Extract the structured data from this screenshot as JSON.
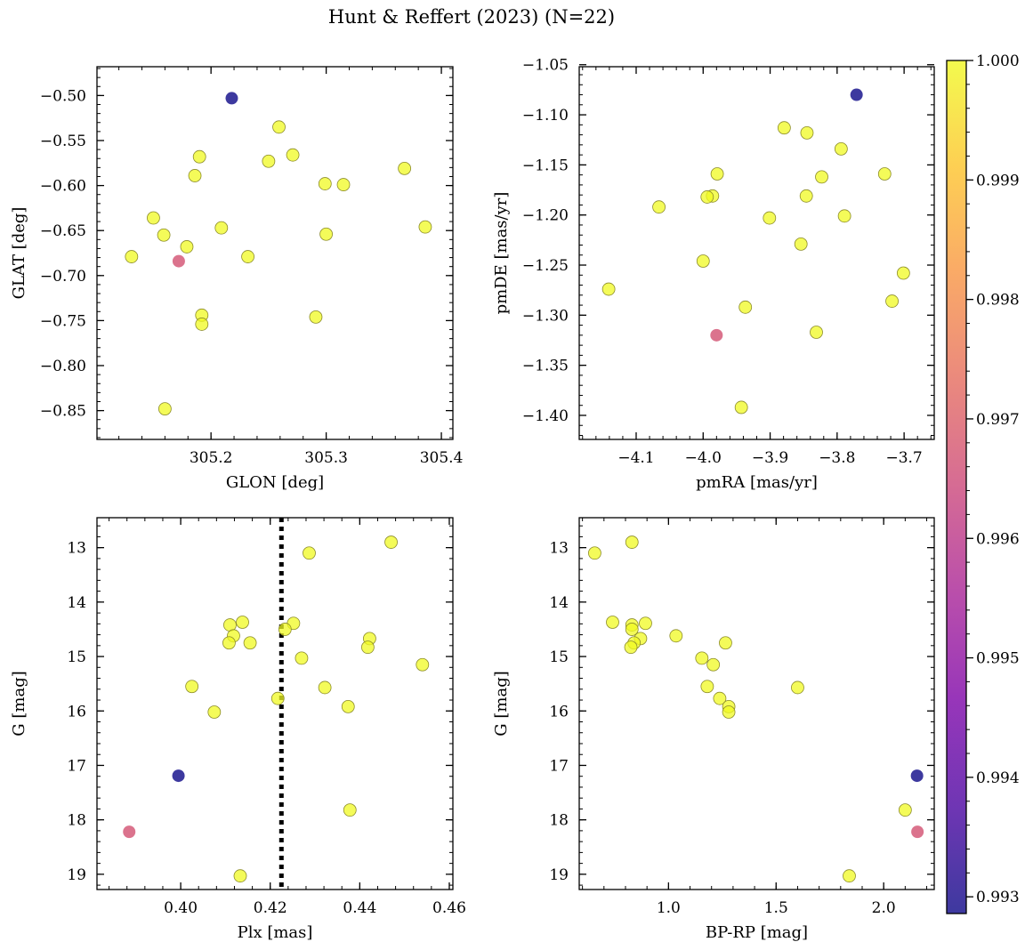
{
  "title": "Hunt & Reffert (2023) (N=22)",
  "colorbar": {
    "vmin": 0.99286,
    "vmax": 1.0,
    "ticks": [
      "0.993",
      "0.994",
      "0.995",
      "0.996",
      "0.997",
      "0.998",
      "0.999",
      "1.000"
    ],
    "tick_values": [
      0.993,
      0.994,
      0.995,
      0.996,
      0.997,
      0.998,
      0.999,
      1.0
    ],
    "colormap": "plasma"
  },
  "chart_data": [
    {
      "type": "scatter",
      "xlabel": "GLON [deg]",
      "ylabel": "GLAT [deg]",
      "xlim": [
        305.101,
        305.41
      ],
      "ylim": [
        -0.882,
        -0.468
      ],
      "yinvert": false,
      "xticks": [
        305.2,
        305.3,
        305.4
      ],
      "xticklabels": [
        "305.2",
        "305.3",
        "305.4"
      ],
      "xminor": 0.02,
      "yticks": [
        -0.85,
        -0.8,
        -0.75,
        -0.7,
        -0.65,
        -0.6,
        -0.55,
        -0.5
      ],
      "yticklabels": [
        "−0.85",
        "−0.80",
        "−0.75",
        "−0.70",
        "−0.65",
        "−0.60",
        "−0.55",
        "−0.50"
      ],
      "yminor": 0.01,
      "points": [
        {
          "x": 305.218,
          "y": -0.503,
          "c": 0.99286
        },
        {
          "x": 305.259,
          "y": -0.535,
          "c": 1.0
        },
        {
          "x": 305.271,
          "y": -0.566,
          "c": 1.0
        },
        {
          "x": 305.25,
          "y": -0.573,
          "c": 1.0
        },
        {
          "x": 305.19,
          "y": -0.568,
          "c": 1.0
        },
        {
          "x": 305.186,
          "y": -0.589,
          "c": 1.0
        },
        {
          "x": 305.368,
          "y": -0.581,
          "c": 1.0
        },
        {
          "x": 305.299,
          "y": -0.598,
          "c": 1.0
        },
        {
          "x": 305.315,
          "y": -0.599,
          "c": 1.0
        },
        {
          "x": 305.15,
          "y": -0.636,
          "c": 1.0
        },
        {
          "x": 305.159,
          "y": -0.655,
          "c": 1.0
        },
        {
          "x": 305.209,
          "y": -0.647,
          "c": 1.0
        },
        {
          "x": 305.3,
          "y": -0.654,
          "c": 1.0
        },
        {
          "x": 305.386,
          "y": -0.646,
          "c": 1.0
        },
        {
          "x": 305.179,
          "y": -0.668,
          "c": 1.0
        },
        {
          "x": 305.131,
          "y": -0.679,
          "c": 1.0
        },
        {
          "x": 305.232,
          "y": -0.679,
          "c": 1.0
        },
        {
          "x": 305.172,
          "y": -0.684,
          "c": 0.99667
        },
        {
          "x": 305.192,
          "y": -0.744,
          "c": 1.0
        },
        {
          "x": 305.192,
          "y": -0.754,
          "c": 1.0
        },
        {
          "x": 305.291,
          "y": -0.746,
          "c": 1.0
        },
        {
          "x": 305.16,
          "y": -0.848,
          "c": 1.0
        }
      ]
    },
    {
      "type": "scatter",
      "xlabel": "pmRA [mas/yr]",
      "ylabel": "pmDE [mas/yr]",
      "xlim": [
        -4.185,
        -3.655
      ],
      "ylim": [
        -1.424,
        -1.052
      ],
      "yinvert": false,
      "xticks": [
        -4.1,
        -4.0,
        -3.9,
        -3.8,
        -3.7
      ],
      "xticklabels": [
        "−4.1",
        "−4.0",
        "−3.9",
        "−3.8",
        "−3.7"
      ],
      "xminor": 0.02,
      "yticks": [
        -1.4,
        -1.35,
        -1.3,
        -1.25,
        -1.2,
        -1.15,
        -1.1,
        -1.05
      ],
      "yticklabels": [
        "−1.40",
        "−1.35",
        "−1.30",
        "−1.25",
        "−1.20",
        "−1.15",
        "−1.10",
        "−1.05"
      ],
      "yminor": 0.01,
      "points": [
        {
          "x": -3.771,
          "y": -1.08,
          "c": 0.99286
        },
        {
          "x": -3.879,
          "y": -1.113,
          "c": 1.0
        },
        {
          "x": -3.845,
          "y": -1.118,
          "c": 1.0
        },
        {
          "x": -3.794,
          "y": -1.134,
          "c": 1.0
        },
        {
          "x": -3.729,
          "y": -1.159,
          "c": 1.0
        },
        {
          "x": -3.979,
          "y": -1.159,
          "c": 1.0
        },
        {
          "x": -3.823,
          "y": -1.162,
          "c": 1.0
        },
        {
          "x": -3.846,
          "y": -1.181,
          "c": 1.0
        },
        {
          "x": -3.986,
          "y": -1.181,
          "c": 1.0
        },
        {
          "x": -3.994,
          "y": -1.182,
          "c": 1.0
        },
        {
          "x": -4.066,
          "y": -1.192,
          "c": 1.0
        },
        {
          "x": -3.789,
          "y": -1.201,
          "c": 1.0
        },
        {
          "x": -3.901,
          "y": -1.203,
          "c": 1.0
        },
        {
          "x": -3.854,
          "y": -1.229,
          "c": 1.0
        },
        {
          "x": -4.0,
          "y": -1.246,
          "c": 1.0
        },
        {
          "x": -3.701,
          "y": -1.258,
          "c": 1.0
        },
        {
          "x": -4.141,
          "y": -1.274,
          "c": 1.0
        },
        {
          "x": -3.718,
          "y": -1.286,
          "c": 1.0
        },
        {
          "x": -3.937,
          "y": -1.292,
          "c": 1.0
        },
        {
          "x": -3.831,
          "y": -1.317,
          "c": 1.0
        },
        {
          "x": -3.98,
          "y": -1.32,
          "c": 0.99667
        },
        {
          "x": -3.943,
          "y": -1.392,
          "c": 1.0
        }
      ]
    },
    {
      "type": "scatter",
      "xlabel": "Plx [mas]",
      "ylabel": "G [mag]",
      "xlim": [
        0.3813,
        0.4608
      ],
      "ylim": [
        12.45,
        19.28
      ],
      "yinvert": true,
      "vline": 0.4225,
      "xticks": [
        0.4,
        0.42,
        0.44,
        0.46
      ],
      "xticklabels": [
        "0.40",
        "0.42",
        "0.44",
        "0.46"
      ],
      "xminor": 0.004,
      "yticks": [
        13,
        14,
        15,
        16,
        17,
        18,
        19
      ],
      "yticklabels": [
        "13",
        "14",
        "15",
        "16",
        "17",
        "18",
        "19"
      ],
      "yminor": 0.2,
      "points": [
        {
          "x": 0.447,
          "y": 12.9,
          "c": 1.0
        },
        {
          "x": 0.4287,
          "y": 13.1,
          "c": 1.0
        },
        {
          "x": 0.4138,
          "y": 14.37,
          "c": 1.0
        },
        {
          "x": 0.4252,
          "y": 14.39,
          "c": 1.0
        },
        {
          "x": 0.411,
          "y": 14.42,
          "c": 1.0
        },
        {
          "x": 0.4233,
          "y": 14.5,
          "c": 1.0
        },
        {
          "x": 0.4118,
          "y": 14.62,
          "c": 1.0
        },
        {
          "x": 0.4422,
          "y": 14.67,
          "c": 1.0
        },
        {
          "x": 0.4108,
          "y": 14.75,
          "c": 1.0
        },
        {
          "x": 0.4155,
          "y": 14.75,
          "c": 1.0
        },
        {
          "x": 0.4418,
          "y": 14.83,
          "c": 1.0
        },
        {
          "x": 0.427,
          "y": 15.03,
          "c": 1.0
        },
        {
          "x": 0.454,
          "y": 15.15,
          "c": 1.0
        },
        {
          "x": 0.4025,
          "y": 15.55,
          "c": 1.0
        },
        {
          "x": 0.4322,
          "y": 15.57,
          "c": 1.0
        },
        {
          "x": 0.4217,
          "y": 15.77,
          "c": 1.0
        },
        {
          "x": 0.4374,
          "y": 15.92,
          "c": 1.0
        },
        {
          "x": 0.4075,
          "y": 16.02,
          "c": 1.0
        },
        {
          "x": 0.3995,
          "y": 17.19,
          "c": 0.99286
        },
        {
          "x": 0.4378,
          "y": 17.82,
          "c": 1.0
        },
        {
          "x": 0.3885,
          "y": 18.22,
          "c": 0.99667
        },
        {
          "x": 0.4133,
          "y": 19.03,
          "c": 1.0
        }
      ]
    },
    {
      "type": "scatter",
      "xlabel": "BP-RP [mag]",
      "ylabel": "G [mag]",
      "xlim": [
        0.585,
        2.235
      ],
      "ylim": [
        12.45,
        19.28
      ],
      "yinvert": true,
      "xticks": [
        1.0,
        1.5,
        2.0
      ],
      "xticklabels": [
        "1.0",
        "1.5",
        "2.0"
      ],
      "xminor": 0.1,
      "yticks": [
        13,
        14,
        15,
        16,
        17,
        18,
        19
      ],
      "yticklabels": [
        "13",
        "14",
        "15",
        "16",
        "17",
        "18",
        "19"
      ],
      "yminor": 0.2,
      "points": [
        {
          "x": 0.83,
          "y": 12.9,
          "c": 1.0
        },
        {
          "x": 0.657,
          "y": 13.1,
          "c": 1.0
        },
        {
          "x": 0.74,
          "y": 14.37,
          "c": 1.0
        },
        {
          "x": 0.893,
          "y": 14.39,
          "c": 1.0
        },
        {
          "x": 0.83,
          "y": 14.42,
          "c": 1.0
        },
        {
          "x": 0.83,
          "y": 14.5,
          "c": 1.0
        },
        {
          "x": 1.035,
          "y": 14.62,
          "c": 1.0
        },
        {
          "x": 0.87,
          "y": 14.67,
          "c": 1.0
        },
        {
          "x": 0.84,
          "y": 14.75,
          "c": 1.0
        },
        {
          "x": 1.265,
          "y": 14.75,
          "c": 1.0
        },
        {
          "x": 0.825,
          "y": 14.83,
          "c": 1.0
        },
        {
          "x": 1.155,
          "y": 15.03,
          "c": 1.0
        },
        {
          "x": 1.208,
          "y": 15.15,
          "c": 1.0
        },
        {
          "x": 1.18,
          "y": 15.55,
          "c": 1.0
        },
        {
          "x": 1.6,
          "y": 15.57,
          "c": 1.0
        },
        {
          "x": 1.238,
          "y": 15.77,
          "c": 1.0
        },
        {
          "x": 1.28,
          "y": 15.92,
          "c": 1.0
        },
        {
          "x": 1.28,
          "y": 16.02,
          "c": 1.0
        },
        {
          "x": 2.155,
          "y": 17.19,
          "c": 0.99286
        },
        {
          "x": 2.1,
          "y": 17.82,
          "c": 1.0
        },
        {
          "x": 2.157,
          "y": 18.22,
          "c": 0.99667
        },
        {
          "x": 1.84,
          "y": 19.03,
          "c": 1.0
        }
      ]
    }
  ]
}
